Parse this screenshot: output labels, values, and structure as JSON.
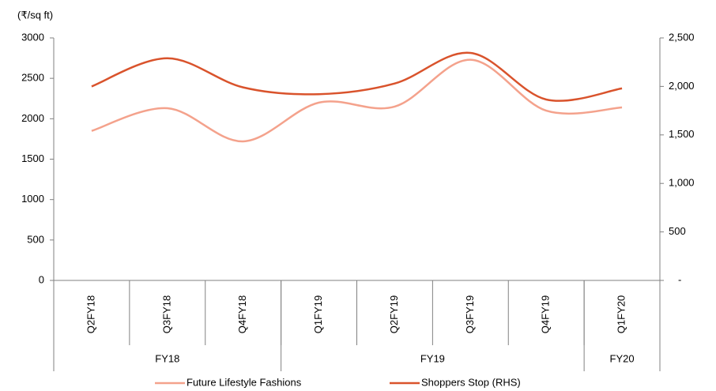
{
  "chart_data": {
    "type": "line",
    "y_label": "(₹/sq ft)",
    "categories": [
      "Q2FY18",
      "Q3FY18",
      "Q4FY18",
      "Q1FY19",
      "Q2FY19",
      "Q3FY19",
      "Q4FY19",
      "Q1FY20"
    ],
    "groups": [
      {
        "label": "FY18",
        "count": 3
      },
      {
        "label": "FY19",
        "count": 4
      },
      {
        "label": "FY20",
        "count": 1
      }
    ],
    "series": [
      {
        "name": "Future Lifestyle Fashions",
        "color": "#f4a28c",
        "values": [
          1850,
          2130,
          1720,
          2200,
          2150,
          2730,
          2100,
          2140
        ]
      },
      {
        "name": "Shoppers Stop (RHS)",
        "color": "#d9532c",
        "axis": "y2",
        "values": [
          2000,
          2290,
          1990,
          1920,
          2030,
          2345,
          1865,
          1980
        ]
      }
    ],
    "ylim": [
      0,
      3000
    ],
    "yticks": [
      0,
      500,
      1000,
      1500,
      2000,
      2500,
      3000
    ],
    "y2lim": [
      0,
      2500
    ],
    "y2ticks": [
      {
        "value": 0,
        "label": "-"
      },
      500,
      {
        "value": 1000,
        "label": "1,000"
      },
      {
        "value": 1500,
        "label": "1,500"
      },
      {
        "value": 2000,
        "label": "2,000"
      },
      {
        "value": 2500,
        "label": "2,500"
      }
    ],
    "smooth": true
  }
}
